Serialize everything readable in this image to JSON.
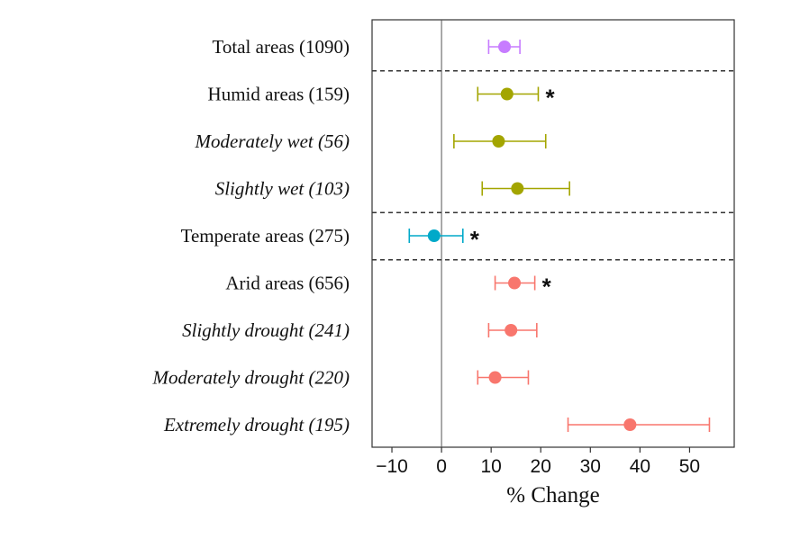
{
  "chart_data": {
    "type": "forest",
    "xlabel": "% Change",
    "xlim": [
      -14,
      59
    ],
    "xticks": [
      -10,
      0,
      10,
      20,
      30,
      40,
      50
    ],
    "xtick_labels": [
      "−10",
      "0",
      "10",
      "20",
      "30",
      "40",
      "50"
    ],
    "reference_line_x": 0,
    "colors": {
      "total": "#c77cff",
      "humid": "#a3a500",
      "temperate": "#00a9c9",
      "arid": "#f8766d"
    },
    "rows": [
      {
        "label": "Total areas (1090)",
        "group": "total",
        "italic": false,
        "estimate": 12.7,
        "ci_low": 9.5,
        "ci_high": 15.8,
        "significant": false
      },
      {
        "label": "Humid areas (159)",
        "group": "humid",
        "italic": false,
        "estimate": 13.2,
        "ci_low": 7.3,
        "ci_high": 19.5,
        "significant": true
      },
      {
        "label": "Moderately wet (56)",
        "group": "humid",
        "italic": true,
        "estimate": 11.5,
        "ci_low": 2.5,
        "ci_high": 21.0,
        "significant": false
      },
      {
        "label": "Slightly wet (103)",
        "group": "humid",
        "italic": true,
        "estimate": 15.3,
        "ci_low": 8.2,
        "ci_high": 25.8,
        "significant": false
      },
      {
        "label": "Temperate areas (275)",
        "group": "temperate",
        "italic": false,
        "estimate": -1.5,
        "ci_low": -6.5,
        "ci_high": 4.3,
        "significant": true
      },
      {
        "label": "Arid areas (656)",
        "group": "arid",
        "italic": false,
        "estimate": 14.7,
        "ci_low": 10.8,
        "ci_high": 18.8,
        "significant": true
      },
      {
        "label": "Slightly drought (241)",
        "group": "arid",
        "italic": true,
        "estimate": 14.0,
        "ci_low": 9.5,
        "ci_high": 19.2,
        "significant": false
      },
      {
        "label": "Moderately drought (220)",
        "group": "arid",
        "italic": true,
        "estimate": 10.8,
        "ci_low": 7.3,
        "ci_high": 17.5,
        "significant": false
      },
      {
        "label": "Extremely drought (195)",
        "group": "arid",
        "italic": true,
        "estimate": 38.0,
        "ci_low": 25.5,
        "ci_high": 54.0,
        "significant": false
      }
    ],
    "separators_after_rows": [
      0,
      3,
      4
    ],
    "significance_marker": "*",
    "grid": false,
    "legend": "none"
  }
}
